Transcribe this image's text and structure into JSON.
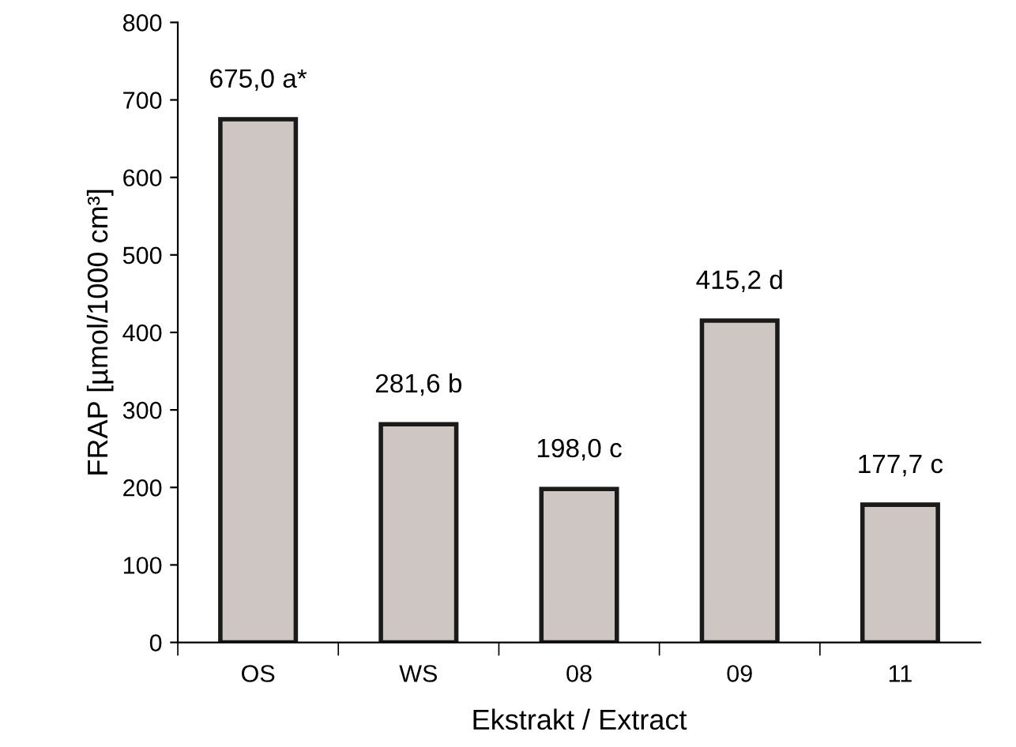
{
  "chart_data": {
    "type": "bar",
    "xlabel": "Ekstrakt / Extract",
    "ylabel": "FRAP [µmol/1000 cm³]",
    "categories": [
      "OS",
      "WS",
      "08",
      "09",
      "11"
    ],
    "values": [
      675.0,
      281.6,
      198.0,
      415.2,
      177.7
    ],
    "value_labels": [
      "675,0 a*",
      "281,6 b",
      "198,0 c",
      "415,2 d",
      "177,7 c"
    ],
    "color": "#cdc6c2",
    "ylim": [
      0,
      800
    ],
    "yticks": [
      0,
      100,
      200,
      300,
      400,
      500,
      600,
      700,
      800
    ],
    "grid": false,
    "legend": false
  }
}
